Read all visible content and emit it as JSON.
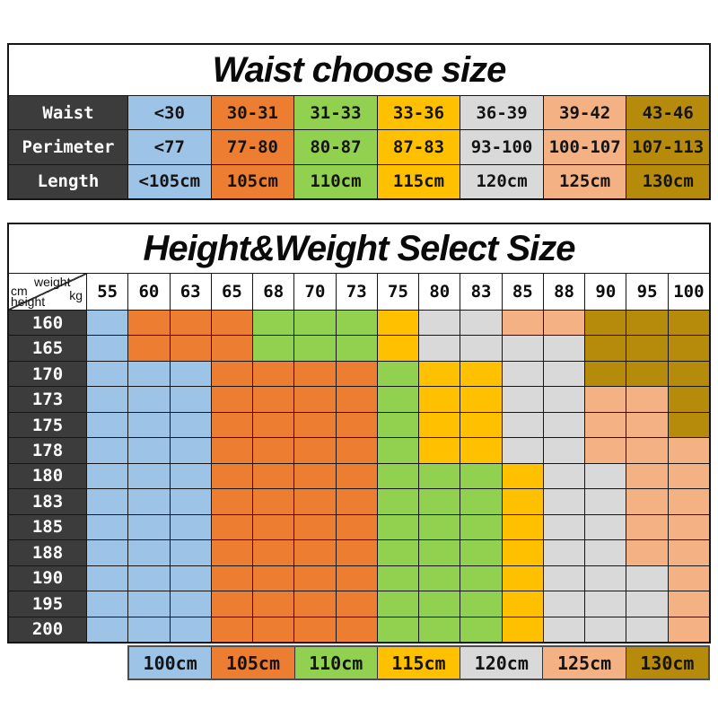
{
  "colors": {
    "palette": {
      "B": "#9DC3E6",
      "O": "#ED7D31",
      "G": "#92D050",
      "Y": "#FFC000",
      "S": "#D9D9D9",
      "P": "#F4B183",
      "D": "#B68A0A"
    },
    "header_bg": "#3C3C3C",
    "grid_line": "#161616"
  },
  "chart_data": [
    {
      "type": "table",
      "title": "Waist choose size",
      "column_colors": [
        "B",
        "O",
        "G",
        "Y",
        "S",
        "P",
        "D"
      ],
      "rows": [
        {
          "label": "Waist",
          "values": [
            "<30",
            "30-31",
            "31-33",
            "33-36",
            "36-39",
            "39-42",
            "43-46"
          ]
        },
        {
          "label": "Perimeter",
          "values": [
            "<77",
            "77-80",
            "80-87",
            "87-83",
            "93-100",
            "100-107",
            "107-113"
          ]
        },
        {
          "label": "Length",
          "values": [
            "<105cm",
            "105cm",
            "110cm",
            "115cm",
            "120cm",
            "125cm",
            "130cm"
          ]
        }
      ]
    },
    {
      "type": "heatmap",
      "title": "Height&Weight Select Size",
      "xlabel": "weight kg",
      "ylabel": "cm height",
      "corner": {
        "top_label": "weight",
        "top_unit": "kg",
        "side_unit": "cm",
        "side_label": "height"
      },
      "x": [
        "55",
        "60",
        "63",
        "65",
        "68",
        "70",
        "73",
        "75",
        "80",
        "83",
        "85",
        "88",
        "90",
        "95",
        "100"
      ],
      "y": [
        "160",
        "165",
        "170",
        "173",
        "175",
        "178",
        "180",
        "183",
        "185",
        "188",
        "190",
        "195",
        "200"
      ],
      "cell_codes": [
        "BOOOGGGYSSPPDDD",
        "BOOOGGGYSSSSDDD",
        "BBBOOOOGYYSSDDD",
        "BBBOOOOGYYSSPPD",
        "BBBOOOOGYYSSPPD",
        "BBBOOOOGYYSSPPP",
        "BBBOOOOGGGYSSPP",
        "BBBOOOOGGGYSSPP",
        "BBBOOOOGGGYSSPP",
        "BBBOOOOGGGYSSPP",
        "BBBOOOOGGGYSSSP",
        "BBBOOOOGGGYSSSP",
        "BBBOOOOGGGYSSSP"
      ],
      "code_to_size": {
        "B": "100cm",
        "O": "105cm",
        "G": "110cm",
        "Y": "115cm",
        "S": "120cm",
        "P": "125cm",
        "D": "130cm"
      },
      "legend_position": "bottom"
    }
  ],
  "legend": {
    "items": [
      {
        "code": "B",
        "label": "100cm"
      },
      {
        "code": "O",
        "label": "105cm"
      },
      {
        "code": "G",
        "label": "110cm"
      },
      {
        "code": "Y",
        "label": "115cm"
      },
      {
        "code": "S",
        "label": "120cm"
      },
      {
        "code": "P",
        "label": "125cm"
      },
      {
        "code": "D",
        "label": "130cm"
      }
    ]
  }
}
